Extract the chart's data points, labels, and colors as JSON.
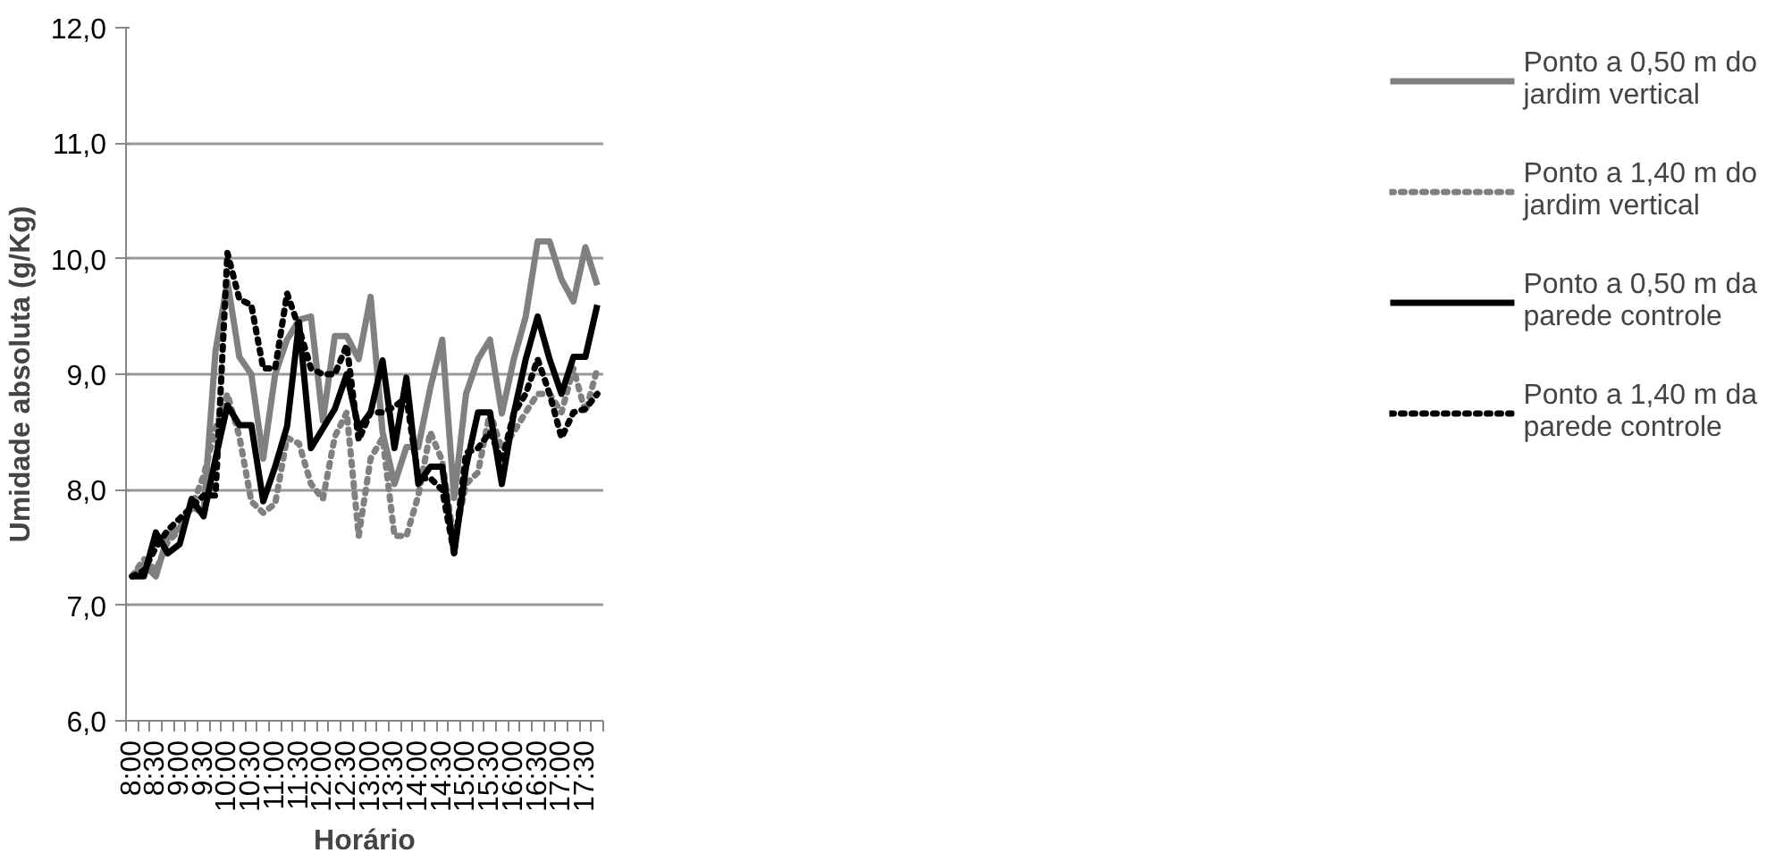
{
  "chart_data": {
    "type": "line",
    "xlabel": "Horário",
    "ylabel": "Umidade absoluta (g/Kg)",
    "categories": [
      "8:00",
      null,
      "8:30",
      null,
      "9:00",
      null,
      "9:30",
      null,
      "10:00",
      null,
      "10:30",
      null,
      "11:00",
      null,
      "11:30",
      null,
      "12:00",
      null,
      "12:30",
      null,
      "13:00",
      null,
      "13:30",
      null,
      "14:00",
      null,
      "14:30",
      null,
      "15:00",
      null,
      "15:30",
      null,
      "16:00",
      null,
      "16:30",
      null,
      "17:00",
      null,
      "17:30",
      null
    ],
    "series": [
      {
        "name": "Ponto a 0,50 m do jardim vertical",
        "color": "#808080",
        "line_style": "solid",
        "values": [
          7.25,
          7.35,
          7.25,
          7.6,
          7.67,
          7.85,
          7.8,
          9.2,
          9.8,
          9.15,
          9.0,
          8.27,
          9.0,
          9.3,
          9.47,
          9.5,
          8.6,
          9.33,
          9.33,
          9.13,
          9.67,
          8.5,
          8.05,
          8.37,
          8.37,
          8.88,
          9.3,
          7.93,
          8.83,
          9.13,
          9.3,
          8.66,
          9.13,
          9.5,
          10.15,
          10.15,
          9.82,
          9.63,
          10.1,
          9.77
        ]
      },
      {
        "name": "Ponto a 1,40 m do jardim vertical",
        "color": "#808080",
        "line_style": "dotted",
        "values": [
          7.25,
          7.4,
          7.3,
          7.55,
          7.65,
          7.85,
          8.12,
          8.53,
          8.83,
          8.46,
          7.9,
          7.8,
          7.88,
          8.45,
          8.4,
          8.05,
          7.92,
          8.46,
          8.67,
          7.6,
          8.27,
          8.45,
          7.6,
          7.6,
          7.95,
          8.5,
          8.25,
          7.55,
          8.05,
          8.15,
          8.67,
          8.35,
          8.5,
          8.67,
          8.83,
          8.83,
          8.67,
          9.05,
          8.67,
          9.05
        ]
      },
      {
        "name": "Ponto a 0,50 m da parede controle",
        "color": "#000000",
        "line_style": "solid",
        "values": [
          7.25,
          7.25,
          7.63,
          7.45,
          7.53,
          7.92,
          7.77,
          8.27,
          8.73,
          8.56,
          8.56,
          7.9,
          8.2,
          8.55,
          9.45,
          8.36,
          8.53,
          8.7,
          9.0,
          8.53,
          8.67,
          9.12,
          8.36,
          8.97,
          8.05,
          8.2,
          8.2,
          7.45,
          8.2,
          8.67,
          8.67,
          8.05,
          8.66,
          9.13,
          9.5,
          9.13,
          8.83,
          9.15,
          9.15,
          9.6
        ]
      },
      {
        "name": "Ponto a 1,40 m da parede controle",
        "color": "#000000",
        "line_style": "dotted",
        "values": [
          7.25,
          7.3,
          7.5,
          7.65,
          7.75,
          7.85,
          7.95,
          7.95,
          10.05,
          9.65,
          9.6,
          9.05,
          9.05,
          9.7,
          9.4,
          9.05,
          9.0,
          9.0,
          9.25,
          8.43,
          8.67,
          8.67,
          8.72,
          8.8,
          8.1,
          8.1,
          8.0,
          7.45,
          8.32,
          8.36,
          8.5,
          8.25,
          8.66,
          8.83,
          9.13,
          8.83,
          8.45,
          8.67,
          8.7,
          8.83
        ]
      }
    ],
    "ylim": [
      6,
      12
    ],
    "yticks": [
      {
        "value": 6,
        "label": "6,0"
      },
      {
        "value": 7,
        "label": "7,0"
      },
      {
        "value": 8,
        "label": "8,0"
      },
      {
        "value": 9,
        "label": "9,0"
      },
      {
        "value": 10,
        "label": "10,0"
      },
      {
        "value": 11,
        "label": "11,0"
      },
      {
        "value": 12,
        "label": "12,0"
      }
    ],
    "grid": "y",
    "legend": "right",
    "marker": "none"
  }
}
